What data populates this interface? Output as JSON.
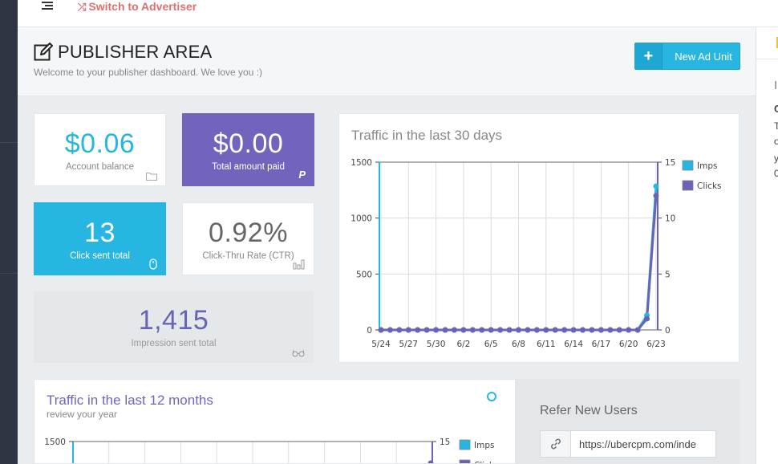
{
  "header": {
    "switch_label": "Switch to Advertiser"
  },
  "page": {
    "title": "PUBLISHER AREA",
    "subtitle": "Welcome to your publisher dashboard. We love you :)",
    "new_ad_unit_label": "New Ad Unit"
  },
  "right_panel": {
    "fragments": [
      "I",
      "C",
      "T",
      "o",
      "y",
      "0"
    ]
  },
  "stats": {
    "balance": {
      "value": "$0.06",
      "label": "Account balance"
    },
    "paid": {
      "value": "$0.00",
      "label": "Total amount paid"
    },
    "clicks": {
      "value": "13",
      "label": "Click sent total"
    },
    "ctr": {
      "value": "0.92%",
      "label": "Click-Thru Rate (CTR)"
    },
    "impressions": {
      "value": "1,415",
      "label": "Impression sent total"
    }
  },
  "colors": {
    "accent_blue": "#27b6e2",
    "accent_purple": "#7264bd",
    "imps_series": "#27b6e2",
    "clicks_series": "#6a62b5"
  },
  "chart_data": [
    {
      "type": "line",
      "title": "Traffic in the last 30 days",
      "x": [
        "5/24",
        "5/25",
        "5/26",
        "5/27",
        "5/28",
        "5/29",
        "5/30",
        "5/31",
        "6/1",
        "6/2",
        "6/3",
        "6/4",
        "6/5",
        "6/6",
        "6/7",
        "6/8",
        "6/9",
        "6/10",
        "6/11",
        "6/12",
        "6/13",
        "6/14",
        "6/15",
        "6/16",
        "6/17",
        "6/18",
        "6/19",
        "6/20",
        "6/21",
        "6/22",
        "6/23"
      ],
      "tick_labels": [
        "5/24",
        "5/27",
        "5/30",
        "6/2",
        "6/5",
        "6/8",
        "6/11",
        "6/14",
        "6/17",
        "6/20",
        "6/23"
      ],
      "series": [
        {
          "name": "Imps",
          "axis": "left",
          "values": [
            0,
            0,
            0,
            0,
            0,
            0,
            0,
            0,
            0,
            0,
            0,
            0,
            0,
            0,
            0,
            0,
            0,
            0,
            0,
            0,
            0,
            0,
            0,
            0,
            0,
            0,
            0,
            0,
            0,
            130,
            1285
          ]
        },
        {
          "name": "Clicks",
          "axis": "right",
          "values": [
            0,
            0,
            0,
            0,
            0,
            0,
            0,
            0,
            0,
            0,
            0,
            0,
            0,
            0,
            0,
            0,
            0,
            0,
            0,
            0,
            0,
            0,
            0,
            0,
            0,
            0,
            0,
            0,
            0,
            1,
            12
          ]
        }
      ],
      "ylim_left": [
        0,
        1500
      ],
      "yticks_left": [
        "0",
        "500",
        "1000",
        "1500"
      ],
      "ylim_right": [
        0,
        15
      ],
      "yticks_right": [
        "0",
        "5",
        "10",
        "15"
      ],
      "legend": "right"
    },
    {
      "type": "line",
      "title": "Traffic in the last 12 months",
      "subtitle": "review your year",
      "series": [
        {
          "name": "Imps",
          "axis": "left"
        },
        {
          "name": "Clicks",
          "axis": "right"
        }
      ],
      "yticks_left_visible": [
        "1500"
      ],
      "yticks_right_visible": [
        "15"
      ],
      "ylim_left": [
        0,
        1500
      ],
      "ylim_right": [
        0,
        15
      ],
      "legend": "right"
    }
  ],
  "refer": {
    "title": "Refer New Users",
    "url": "https://ubercpm.com/inde"
  }
}
